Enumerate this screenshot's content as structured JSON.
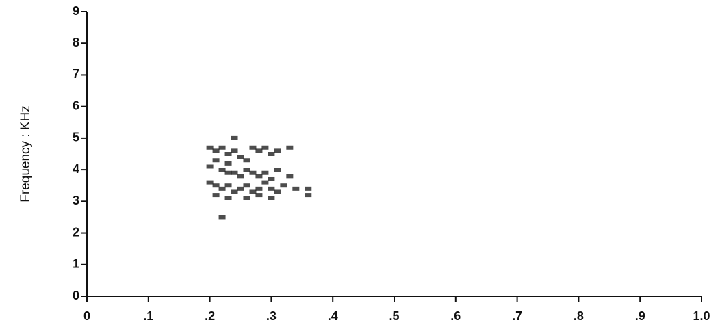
{
  "chart_data": {
    "type": "spectrogram",
    "y_label": "Frequency : KHz",
    "xlim": [
      0,
      1
    ],
    "ylim": [
      0,
      9
    ],
    "xticks": [
      0,
      {
        "value": 0.1,
        "label": ".1"
      },
      {
        "value": 0.2,
        "label": ".2"
      },
      {
        "value": 0.3,
        "label": ".3"
      },
      {
        "value": 0.4,
        "label": ".4"
      },
      {
        "value": 0.5,
        "label": ".5"
      },
      {
        "value": 0.6,
        "label": ".6"
      },
      {
        "value": 0.7,
        "label": ".7"
      },
      {
        "value": 0.8,
        "label": ".8"
      },
      {
        "value": 0.9,
        "label": ".9"
      },
      {
        "value": 1,
        "label": "1.0"
      }
    ],
    "yticks": [
      0,
      1,
      2,
      3,
      4,
      5,
      6,
      7,
      8,
      9
    ],
    "color": "#111111",
    "x": [
      0.2,
      0.21,
      0.22,
      0.23,
      0.24,
      0.25,
      0.27,
      0.28,
      0.29,
      0.3,
      0.31,
      0.33,
      0.21,
      0.23,
      0.26,
      0.22,
      0.23,
      0.24,
      0.25,
      0.26,
      0.27,
      0.28,
      0.29,
      0.3,
      0.31,
      0.33,
      0.2,
      0.21,
      0.22,
      0.23,
      0.24,
      0.25,
      0.26,
      0.27,
      0.28,
      0.29,
      0.3,
      0.31,
      0.32,
      0.34,
      0.36,
      0.21,
      0.23,
      0.26,
      0.28,
      0.3,
      0.22,
      0.24,
      0.36,
      0.2
    ],
    "y": [
      4.7,
      4.6,
      4.7,
      4.5,
      4.6,
      4.4,
      4.7,
      4.6,
      4.7,
      4.5,
      4.6,
      4.7,
      4.3,
      4.2,
      4.3,
      4.0,
      3.9,
      3.9,
      3.8,
      4.0,
      3.9,
      3.8,
      3.9,
      3.7,
      4.0,
      3.8,
      3.6,
      3.5,
      3.4,
      3.5,
      3.3,
      3.4,
      3.5,
      3.3,
      3.4,
      3.6,
      3.4,
      3.3,
      3.5,
      3.4,
      3.4,
      3.2,
      3.1,
      3.1,
      3.2,
      3.1,
      2.5,
      5.0,
      3.2,
      4.1
    ]
  }
}
